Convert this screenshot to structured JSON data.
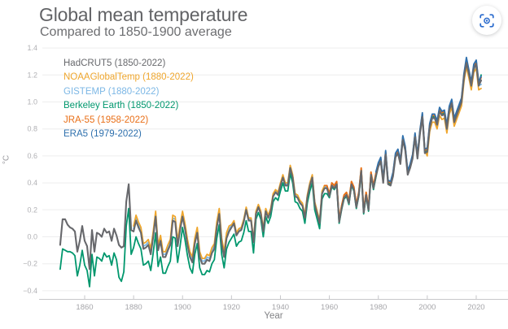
{
  "header": {
    "title": "Global mean temperature",
    "subtitle": "Compared to 1850-1900 average"
  },
  "controls": {
    "screen_capture_button": {
      "icon": "screen-capture-icon",
      "color": "#2a6bcd"
    }
  },
  "chart_data": {
    "type": "line",
    "title": "Global mean temperature",
    "subtitle": "Compared to 1850-1900 average",
    "xlabel": "Year",
    "ylabel": "°C",
    "xlim": [
      1849,
      2023
    ],
    "ylim": [
      -0.45,
      1.45
    ],
    "grid": "horizontal",
    "legend_position": "top-left inside plot",
    "x_ticks": [
      1860,
      1880,
      1900,
      1920,
      1940,
      1960,
      1980,
      2000,
      2020
    ],
    "y_ticks": [
      {
        "label": "1.4",
        "value": 1.4
      },
      {
        "label": "1.2",
        "value": 1.2
      },
      {
        "label": "1.0",
        "value": 1.0
      },
      {
        "label": "0.8",
        "value": 0.8
      },
      {
        "label": "0.6",
        "value": 0.6
      },
      {
        "label": "0.4",
        "value": 0.4
      },
      {
        "label": "0.2",
        "value": 0.2
      },
      {
        "label": "0.0",
        "value": 0.0
      },
      {
        "label": "−0.2",
        "value": -0.2
      },
      {
        "label": "−0.4",
        "value": -0.4
      }
    ],
    "series": [
      {
        "name": "HadCRUT5",
        "label": "HadCRUT5 (1850-2022)",
        "color": "#67686c",
        "start_year": 1850,
        "end_year": 2022,
        "values": [
          -0.06,
          0.13,
          0.13,
          0.09,
          0.07,
          0.06,
          0.04,
          -0.11,
          -0.03,
          0.08,
          -0.03,
          -0.07,
          -0.24,
          0.05,
          -0.11,
          0.03,
          0.02,
          0,
          0.06,
          0.03,
          0.04,
          -0.03,
          0.06,
          0.01,
          -0.06,
          -0.08,
          -0.07,
          0.26,
          0.39,
          0.05,
          0.04,
          0.12,
          0.07,
          0.03,
          -0.09,
          -0.08,
          -0.06,
          -0.13,
          0,
          0.15,
          -0.1,
          -0.03,
          -0.15,
          -0.15,
          -0.1,
          -0.06,
          0.12,
          0.11,
          -0.07,
          0.05,
          0.15,
          0.06,
          -0.06,
          -0.15,
          -0.19,
          -0.05,
          0.03,
          -0.15,
          -0.2,
          -0.2,
          -0.17,
          -0.18,
          -0.12,
          -0.09,
          0.07,
          0.17,
          -0.05,
          -0.15,
          -0.01,
          0.04,
          0.07,
          0.1,
          0.01,
          0.04,
          0.05,
          0.11,
          0.2,
          0.12,
          0.12,
          -0.04,
          0.17,
          0.22,
          0.17,
          0.04,
          0.19,
          0.14,
          0.19,
          0.3,
          0.33,
          0.31,
          0.38,
          0.44,
          0.38,
          0.38,
          0.51,
          0.44,
          0.3,
          0.29,
          0.25,
          0.23,
          0.14,
          0.29,
          0.38,
          0.44,
          0.24,
          0.17,
          0.1,
          0.32,
          0.36,
          0.36,
          0.3,
          0.38,
          0.36,
          0.39,
          0.11,
          0.21,
          0.29,
          0.31,
          0.25,
          0.39,
          0.35,
          0.22,
          0.31,
          0.49,
          0.18,
          0.31,
          0.2,
          0.46,
          0.36,
          0.45,
          0.52,
          0.56,
          0.4,
          0.61,
          0.39,
          0.38,
          0.45,
          0.59,
          0.62,
          0.54,
          0.72,
          0.64,
          0.46,
          0.51,
          0.58,
          0.74,
          0.58,
          0.76,
          0.89,
          0.62,
          0.63,
          0.81,
          0.88,
          0.88,
          0.83,
          0.93,
          0.9,
          0.91,
          0.8,
          0.94,
          0.99,
          0.85,
          0.9,
          0.95,
          1.0,
          1.18,
          1.29,
          1.21,
          1.12,
          1.25,
          1.28,
          1.12,
          1.16
        ]
      },
      {
        "name": "NOAAGlobalTemp",
        "label": "NOAAGlobalTemp (1880-2022)",
        "color": "#efa62d",
        "start_year": 1880,
        "end_year": 2022,
        "values": [
          0.08,
          0.16,
          0.11,
          0.07,
          -0.05,
          -0.04,
          -0.02,
          -0.09,
          0.04,
          0.19,
          -0.06,
          0.01,
          -0.11,
          -0.11,
          -0.06,
          -0.02,
          0.16,
          0.15,
          -0.03,
          0.09,
          0.19,
          0.1,
          -0.02,
          -0.11,
          -0.15,
          -0.01,
          0.07,
          -0.11,
          -0.16,
          -0.16,
          -0.13,
          -0.14,
          -0.08,
          -0.05,
          0.11,
          0.21,
          -0.01,
          -0.11,
          0.03,
          0.08,
          0.09,
          0.12,
          0.03,
          0.06,
          0.07,
          0.13,
          0.22,
          0.14,
          0.14,
          -0.02,
          0.19,
          0.24,
          0.19,
          0.06,
          0.21,
          0.16,
          0.21,
          0.32,
          0.35,
          0.33,
          0.4,
          0.46,
          0.4,
          0.4,
          0.53,
          0.46,
          0.32,
          0.31,
          0.27,
          0.25,
          0.16,
          0.31,
          0.4,
          0.46,
          0.26,
          0.19,
          0.12,
          0.34,
          0.38,
          0.38,
          0.32,
          0.4,
          0.38,
          0.41,
          0.13,
          0.23,
          0.31,
          0.33,
          0.27,
          0.41,
          0.37,
          0.24,
          0.33,
          0.51,
          0.2,
          0.33,
          0.22,
          0.48,
          0.38,
          0.47,
          0.54,
          0.58,
          0.42,
          0.63,
          0.41,
          0.4,
          0.47,
          0.61,
          0.64,
          0.56,
          0.74,
          0.66,
          0.48,
          0.53,
          0.6,
          0.76,
          0.6,
          0.78,
          0.91,
          0.64,
          0.6,
          0.78,
          0.85,
          0.85,
          0.8,
          0.9,
          0.87,
          0.88,
          0.77,
          0.91,
          0.96,
          0.82,
          0.87,
          0.92,
          0.97,
          1.15,
          1.26,
          1.18,
          1.09,
          1.22,
          1.25,
          1.09,
          1.1
        ]
      },
      {
        "name": "GISTEMP",
        "label": "GISTEMP (1880-2022)",
        "color": "#7cb7e5",
        "start_year": 1880,
        "end_year": 2022,
        "values": [
          0.06,
          0.14,
          0.09,
          0.05,
          -0.07,
          -0.06,
          -0.04,
          -0.11,
          0.02,
          0.17,
          -0.08,
          -0.01,
          -0.13,
          -0.13,
          -0.08,
          -0.04,
          0.14,
          0.13,
          -0.05,
          0.07,
          0.17,
          0.08,
          -0.04,
          -0.13,
          -0.17,
          -0.03,
          0.05,
          -0.13,
          -0.18,
          -0.18,
          -0.15,
          -0.16,
          -0.1,
          -0.07,
          0.09,
          0.19,
          -0.03,
          -0.13,
          0.01,
          0.06,
          0.08,
          0.11,
          0.02,
          0.05,
          0.06,
          0.12,
          0.21,
          0.13,
          0.13,
          -0.03,
          0.18,
          0.23,
          0.18,
          0.05,
          0.2,
          0.15,
          0.2,
          0.31,
          0.34,
          0.32,
          0.39,
          0.45,
          0.39,
          0.39,
          0.52,
          0.45,
          0.31,
          0.3,
          0.26,
          0.24,
          0.15,
          0.3,
          0.39,
          0.45,
          0.25,
          0.18,
          0.11,
          0.33,
          0.37,
          0.37,
          0.31,
          0.39,
          0.37,
          0.4,
          0.12,
          0.22,
          0.3,
          0.32,
          0.26,
          0.4,
          0.36,
          0.23,
          0.32,
          0.5,
          0.19,
          0.32,
          0.21,
          0.47,
          0.37,
          0.46,
          0.53,
          0.57,
          0.41,
          0.62,
          0.4,
          0.39,
          0.46,
          0.6,
          0.63,
          0.55,
          0.73,
          0.65,
          0.47,
          0.52,
          0.59,
          0.75,
          0.59,
          0.77,
          0.9,
          0.63,
          0.63,
          0.81,
          0.88,
          0.88,
          0.83,
          0.93,
          0.9,
          0.91,
          0.8,
          0.94,
          0.99,
          0.85,
          0.9,
          0.95,
          1.0,
          1.18,
          1.27,
          1.19,
          1.1,
          1.23,
          1.28,
          1.12,
          1.13
        ]
      },
      {
        "name": "Berkeley Earth",
        "label": "Berkeley Earth (1850-2022)",
        "color": "#00976d",
        "start_year": 1850,
        "end_year": 2022,
        "values": [
          -0.24,
          -0.09,
          -0.1,
          -0.11,
          -0.11,
          -0.12,
          -0.14,
          -0.29,
          -0.21,
          -0.1,
          -0.21,
          -0.25,
          -0.37,
          -0.13,
          -0.29,
          -0.15,
          -0.16,
          -0.18,
          -0.12,
          -0.15,
          -0.14,
          -0.21,
          -0.12,
          -0.17,
          -0.3,
          -0.33,
          -0.26,
          0.08,
          0.21,
          -0.13,
          -0.08,
          0,
          -0.05,
          -0.09,
          -0.21,
          -0.2,
          -0.18,
          -0.25,
          -0.12,
          0.03,
          -0.22,
          -0.15,
          -0.27,
          -0.27,
          -0.22,
          -0.18,
          0,
          -0.01,
          -0.19,
          -0.07,
          0.07,
          -0.02,
          -0.14,
          -0.23,
          -0.27,
          -0.13,
          -0.05,
          -0.23,
          -0.28,
          -0.28,
          -0.25,
          -0.26,
          -0.2,
          -0.17,
          -0.01,
          0.09,
          -0.13,
          -0.23,
          -0.09,
          -0.04,
          -0.01,
          0.02,
          -0.07,
          -0.04,
          -0.03,
          0.03,
          0.12,
          0.04,
          0.04,
          -0.12,
          0.13,
          0.18,
          0.13,
          0,
          0.15,
          0.1,
          0.15,
          0.26,
          0.29,
          0.27,
          0.34,
          0.4,
          0.34,
          0.34,
          0.47,
          0.4,
          0.26,
          0.25,
          0.21,
          0.19,
          0.1,
          0.25,
          0.34,
          0.4,
          0.2,
          0.13,
          0.06,
          0.28,
          0.32,
          0.32,
          0.29,
          0.37,
          0.35,
          0.38,
          0.1,
          0.2,
          0.28,
          0.3,
          0.24,
          0.38,
          0.34,
          0.21,
          0.3,
          0.48,
          0.17,
          0.3,
          0.19,
          0.45,
          0.35,
          0.44,
          0.53,
          0.57,
          0.41,
          0.62,
          0.4,
          0.39,
          0.46,
          0.6,
          0.63,
          0.55,
          0.73,
          0.65,
          0.47,
          0.52,
          0.59,
          0.75,
          0.59,
          0.77,
          0.9,
          0.63,
          0.64,
          0.82,
          0.89,
          0.89,
          0.84,
          0.94,
          0.91,
          0.92,
          0.81,
          0.95,
          1.0,
          0.86,
          0.91,
          0.96,
          1.01,
          1.19,
          1.3,
          1.22,
          1.13,
          1.26,
          1.29,
          1.13,
          1.2
        ]
      },
      {
        "name": "JRA-55",
        "label": "JRA-55 (1958-2022)",
        "color": "#e96f17",
        "start_year": 1958,
        "end_year": 2022,
        "values": [
          0.38,
          0.38,
          0.32,
          0.4,
          0.38,
          0.41,
          0.13,
          0.23,
          0.31,
          0.33,
          0.27,
          0.41,
          0.37,
          0.24,
          0.33,
          0.51,
          0.2,
          0.33,
          0.22,
          0.48,
          0.38,
          0.47,
          0.54,
          0.58,
          0.42,
          0.63,
          0.41,
          0.4,
          0.47,
          0.61,
          0.64,
          0.56,
          0.74,
          0.66,
          0.48,
          0.53,
          0.6,
          0.76,
          0.6,
          0.78,
          0.91,
          0.64,
          0.65,
          0.83,
          0.9,
          0.9,
          0.85,
          0.95,
          0.92,
          0.93,
          0.82,
          0.96,
          1.01,
          0.87,
          0.92,
          0.97,
          1.02,
          1.2,
          1.31,
          1.23,
          1.14,
          1.27,
          1.3,
          1.14,
          1.18
        ]
      },
      {
        "name": "ERA5",
        "label": "ERA5 (1979-2022)",
        "color": "#2e70ad",
        "start_year": 1979,
        "end_year": 2022,
        "values": [
          0.48,
          0.55,
          0.59,
          0.43,
          0.64,
          0.42,
          0.41,
          0.48,
          0.62,
          0.65,
          0.57,
          0.75,
          0.67,
          0.49,
          0.54,
          0.61,
          0.77,
          0.61,
          0.79,
          0.92,
          0.65,
          0.66,
          0.84,
          0.91,
          0.91,
          0.86,
          0.96,
          0.93,
          0.94,
          0.83,
          0.97,
          1.02,
          0.88,
          0.93,
          0.98,
          1.03,
          1.21,
          1.33,
          1.24,
          1.15,
          1.28,
          1.31,
          1.15,
          1.19
        ]
      }
    ]
  }
}
